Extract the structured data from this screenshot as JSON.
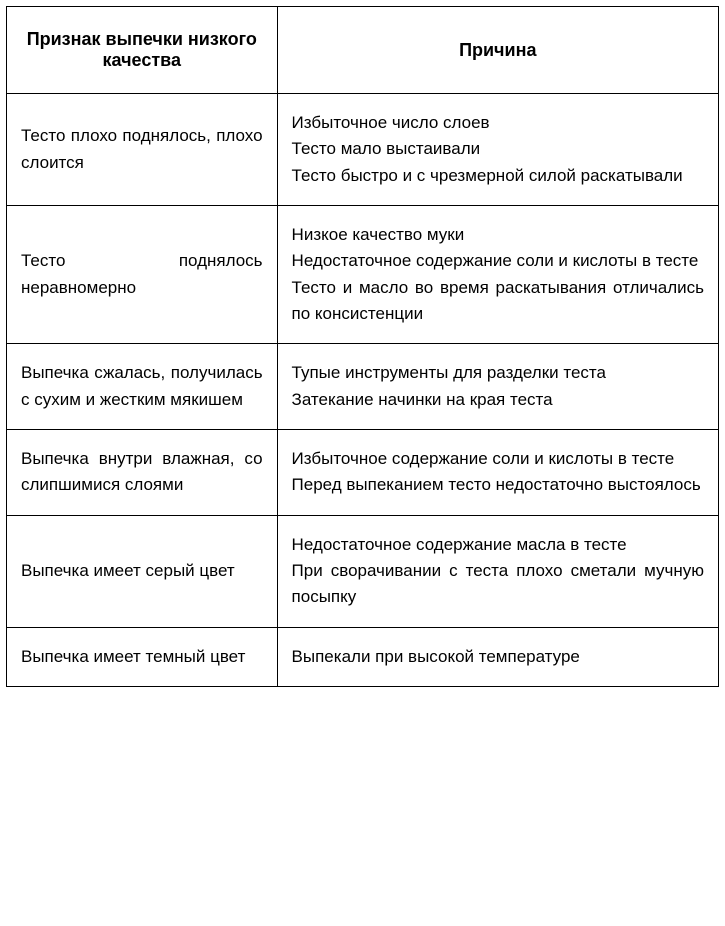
{
  "table": {
    "columns": [
      {
        "header": "Признак выпечки низкого качества",
        "width": "38%"
      },
      {
        "header": "Причина",
        "width": "62%"
      }
    ],
    "rows": [
      {
        "sign": "Тесто плохо поднялось, плохо слоится",
        "causes": [
          "Избыточное число слоев",
          "Тесто мало выстаивали",
          "Тесто быстро и с чрезмерной силой раскатывали"
        ]
      },
      {
        "sign": "Тесто поднялось неравномерно",
        "causes": [
          "Низкое качество муки",
          "Недостаточное содержание соли и кислоты в тесте",
          "Тесто и масло во время раскатывания отличались по консистенции"
        ]
      },
      {
        "sign": "Выпечка сжалась, получилась с сухим и жестким мякишем",
        "causes": [
          "Тупые инструменты для разделки теста",
          "Затекание начинки на края теста"
        ]
      },
      {
        "sign": "Выпечка внутри влажная, со слипшимися слоями",
        "causes": [
          "Избыточное содержание соли и кислоты в тесте",
          "Перед выпеканием тесто недостаточно выстоялось"
        ]
      },
      {
        "sign": "Выпечка имеет серый цвет",
        "causes": [
          "Недостаточное содержание масла в тесте",
          "При сворачивании с теста плохо сметали мучную посыпку"
        ]
      },
      {
        "sign": "Выпечка имеет темный цвет",
        "causes": [
          "Выпекали при высокой температуре"
        ]
      }
    ],
    "styling": {
      "border_color": "#000000",
      "border_width": 1.5,
      "background_color": "#ffffff",
      "text_color": "#000000",
      "header_fontsize": 18,
      "cell_fontsize": 17,
      "header_font_weight": "bold",
      "cell_alignment_left": "justify",
      "cell_alignment_right": "justify",
      "header_alignment": "center",
      "line_height": 1.55
    }
  }
}
